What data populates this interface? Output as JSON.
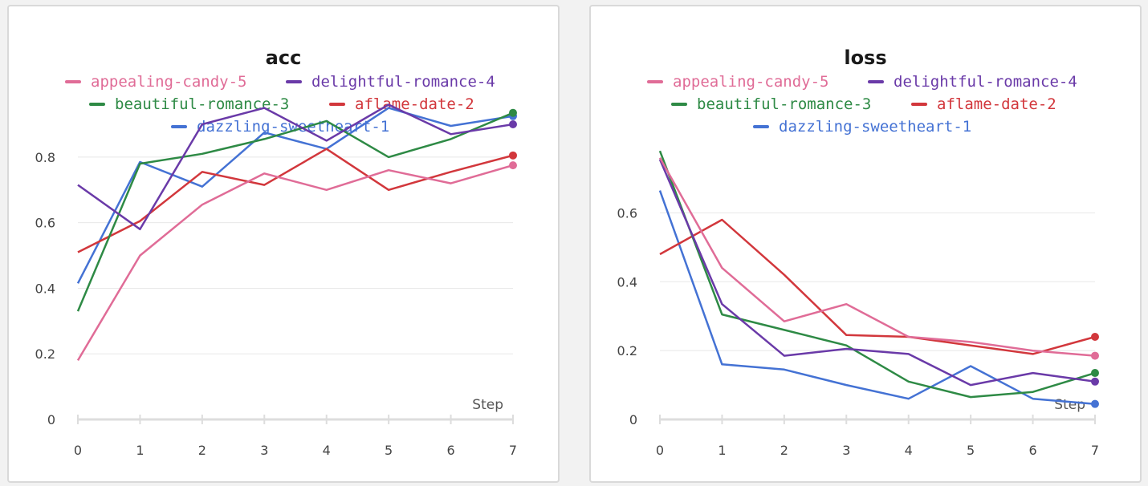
{
  "colors": {
    "appealing-candy-5": "#e06c97",
    "delightful-romance-4": "#6a3aa8",
    "beautiful-romance-3": "#2e8a45",
    "aflame-date-2": "#d2373c",
    "dazzling-sweetheart-1": "#4472d4"
  },
  "chart_data": [
    {
      "type": "line",
      "title": "acc",
      "xlabel": "Step",
      "ylabel": "",
      "x": [
        0,
        1,
        2,
        3,
        4,
        5,
        6,
        7
      ],
      "xlim": [
        0,
        7
      ],
      "ylim": [
        0,
        0.9
      ],
      "yticks": [
        0,
        0.2,
        0.4,
        0.6,
        0.8
      ],
      "xticks": [
        "0",
        "1",
        "2",
        "3",
        "4",
        "5",
        "6",
        "7"
      ],
      "grid": true,
      "legend_position": "top",
      "series": [
        {
          "name": "appealing-candy-5",
          "values": [
            0.18,
            0.5,
            0.655,
            0.75,
            0.7,
            0.76,
            0.72,
            0.775
          ]
        },
        {
          "name": "delightful-romance-4",
          "values": [
            0.715,
            0.58,
            0.9,
            0.95,
            0.85,
            0.96,
            0.87,
            0.9
          ]
        },
        {
          "name": "beautiful-romance-3",
          "values": [
            0.33,
            0.78,
            0.81,
            0.855,
            0.91,
            0.8,
            0.855,
            0.935
          ]
        },
        {
          "name": "aflame-date-2",
          "values": [
            0.51,
            0.605,
            0.755,
            0.715,
            0.825,
            0.7,
            0.755,
            0.805
          ]
        },
        {
          "name": "dazzling-sweetheart-1",
          "values": [
            0.415,
            0.785,
            0.71,
            0.875,
            0.825,
            0.95,
            0.895,
            0.925
          ]
        }
      ]
    },
    {
      "type": "line",
      "title": "loss",
      "xlabel": "Step",
      "ylabel": "",
      "x": [
        0,
        1,
        2,
        3,
        4,
        5,
        6,
        7
      ],
      "xlim": [
        0,
        7
      ],
      "ylim": [
        0,
        0.65
      ],
      "yticks": [
        0,
        0.2,
        0.4,
        0.6
      ],
      "xticks": [
        "0",
        "1",
        "2",
        "3",
        "4",
        "5",
        "6",
        "7"
      ],
      "grid": true,
      "legend_position": "top",
      "series": [
        {
          "name": "appealing-candy-5",
          "values": [
            0.76,
            0.44,
            0.285,
            0.335,
            0.24,
            0.225,
            0.2,
            0.185
          ]
        },
        {
          "name": "delightful-romance-4",
          "values": [
            0.755,
            0.335,
            0.185,
            0.205,
            0.19,
            0.1,
            0.135,
            0.11
          ]
        },
        {
          "name": "beautiful-romance-3",
          "values": [
            0.78,
            0.305,
            0.26,
            0.215,
            0.11,
            0.065,
            0.08,
            0.135
          ]
        },
        {
          "name": "aflame-date-2",
          "values": [
            0.48,
            0.58,
            0.42,
            0.245,
            0.24,
            0.215,
            0.19,
            0.24
          ]
        },
        {
          "name": "dazzling-sweetheart-1",
          "values": [
            0.665,
            0.16,
            0.145,
            0.1,
            0.06,
            0.155,
            0.06,
            0.045
          ]
        }
      ]
    }
  ]
}
